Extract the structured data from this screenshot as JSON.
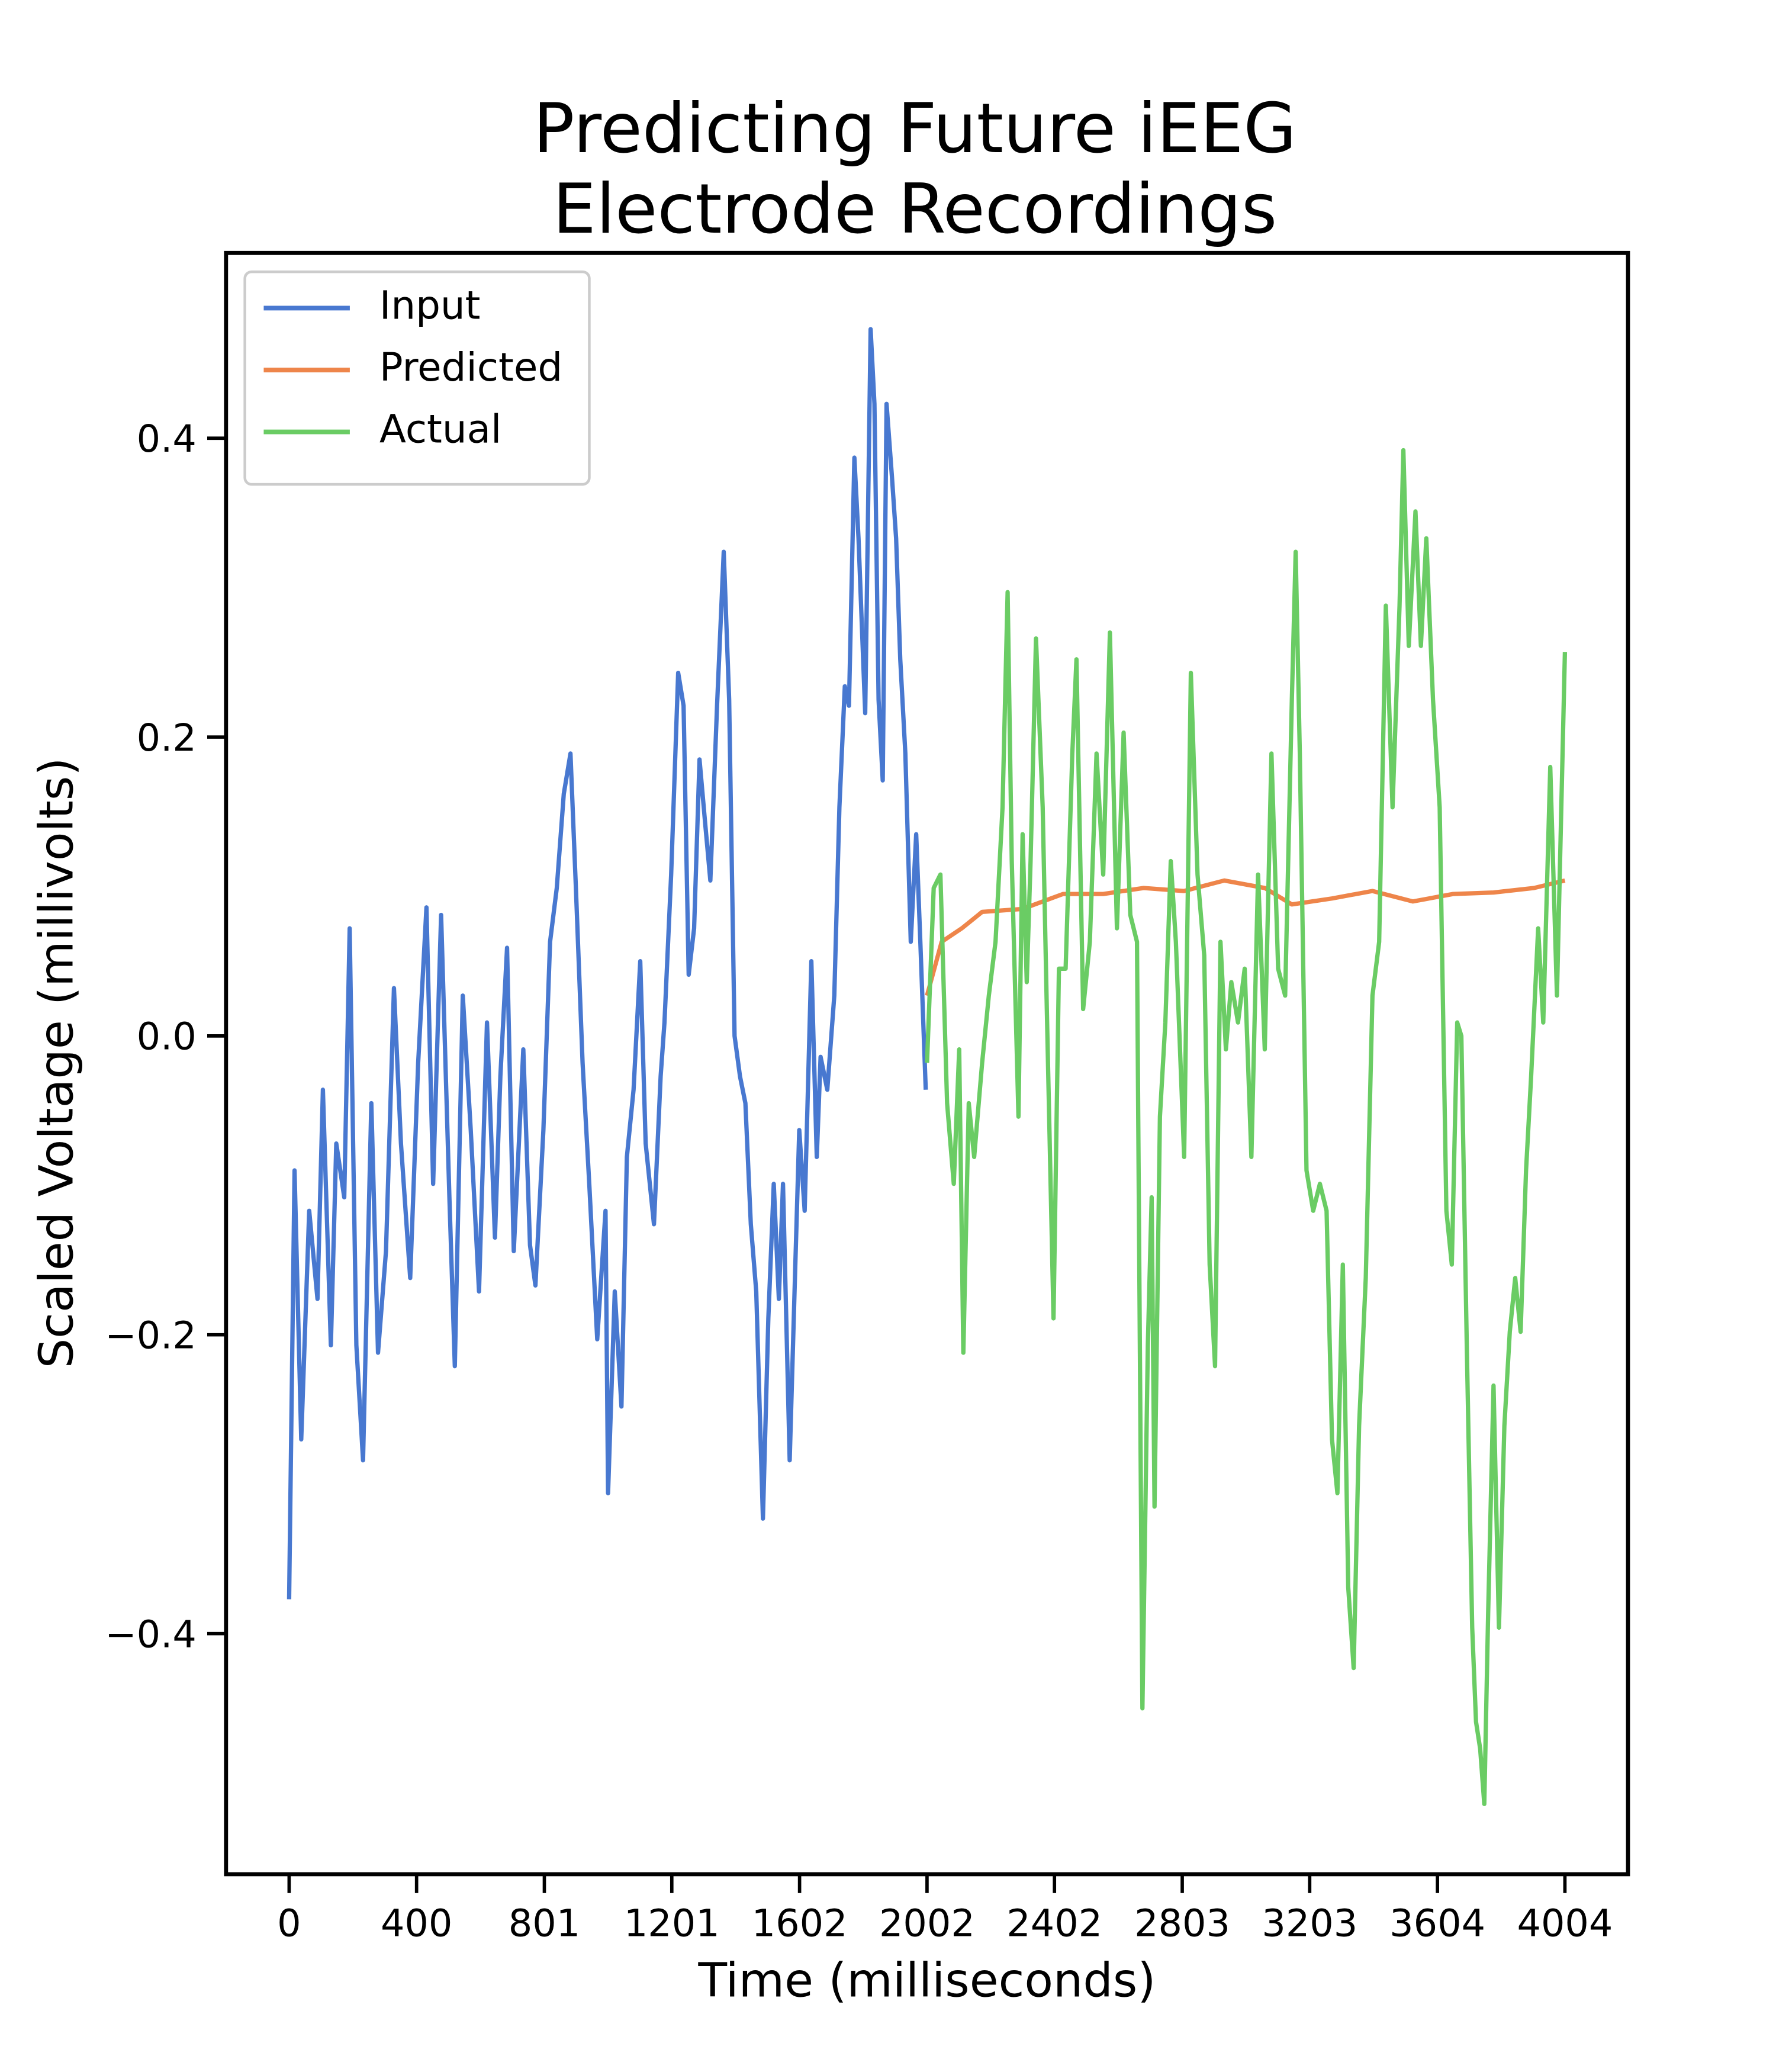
{
  "chart_data": {
    "type": "line",
    "title": "Predicting Future iEEG\nElectrode Recordings",
    "x_label": "Time (milliseconds)",
    "y_label": "Scaled Voltage (millivolts)",
    "xlim": [
      -198,
      4202
    ],
    "ylim": [
      -0.561,
      0.524
    ],
    "xticks": [
      0,
      400,
      801,
      1201,
      1602,
      2002,
      2402,
      2803,
      3203,
      3604,
      4004
    ],
    "yticks": [
      {
        "value": -0.4,
        "label": "−0.4"
      },
      {
        "value": -0.2,
        "label": "−0.2"
      },
      {
        "value": 0,
        "label": "0.0"
      },
      0.2,
      0.4
    ],
    "grid": false,
    "legend_position": "upper-left",
    "series": [
      {
        "name": "Input",
        "color": "#4878d0",
        "x": [
          0,
          17,
          38,
          63,
          89,
          106,
          131,
          148,
          173,
          190,
          211,
          232,
          258,
          279,
          304,
          329,
          351,
          380,
          405,
          431,
          452,
          477,
          503,
          520,
          545,
          570,
          596,
          621,
          646,
          663,
          684,
          705,
          735,
          756,
          773,
          798,
          819,
          840,
          862,
          883,
          900,
          921,
          942,
          967,
          993,
          1001,
          1022,
          1043,
          1060,
          1081,
          1102,
          1119,
          1145,
          1166,
          1178,
          1199,
          1221,
          1238,
          1254,
          1271,
          1288,
          1305,
          1322,
          1343,
          1364,
          1381,
          1398,
          1415,
          1432,
          1449,
          1466,
          1487,
          1504,
          1521,
          1537,
          1550,
          1571,
          1588,
          1601,
          1618,
          1639,
          1656,
          1668,
          1689,
          1711,
          1727,
          1744,
          1757,
          1774,
          1787,
          1808,
          1825,
          1837,
          1850,
          1863,
          1875,
          1892,
          1905,
          1918,
          1934,
          1951,
          1968,
          1981,
          1998
        ],
        "values": [
          -0.377,
          -0.09,
          -0.27,
          -0.117,
          -0.176,
          -0.036,
          -0.207,
          -0.072,
          -0.108,
          0.072,
          -0.207,
          -0.284,
          -0.045,
          -0.212,
          -0.144,
          0.032,
          -0.072,
          -0.162,
          -0.018,
          0.086,
          -0.099,
          0.081,
          -0.108,
          -0.221,
          0.027,
          -0.063,
          -0.171,
          0.009,
          -0.135,
          -0.027,
          0.059,
          -0.144,
          -0.009,
          -0.14,
          -0.167,
          -0.063,
          0.063,
          0.099,
          0.162,
          0.189,
          0.099,
          -0.018,
          -0.099,
          -0.203,
          -0.117,
          -0.306,
          -0.171,
          -0.248,
          -0.081,
          -0.036,
          0.05,
          -0.072,
          -0.126,
          -0.027,
          0.009,
          0.108,
          0.243,
          0.221,
          0.041,
          0.072,
          0.185,
          0.144,
          0.104,
          0.221,
          0.324,
          0.225,
          0,
          -0.027,
          -0.045,
          -0.126,
          -0.171,
          -0.323,
          -0.189,
          -0.099,
          -0.176,
          -0.099,
          -0.284,
          -0.158,
          -0.063,
          -0.117,
          0.05,
          -0.081,
          -0.014,
          -0.036,
          0.027,
          0.153,
          0.234,
          0.221,
          0.387,
          0.333,
          0.216,
          0.473,
          0.423,
          0.225,
          0.171,
          0.423,
          0.374,
          0.333,
          0.252,
          0.189,
          0.063,
          0.135,
          0.063,
          -0.036
        ]
      },
      {
        "name": "Predicted",
        "color": "#ee854a",
        "x": [
          2002,
          2048,
          2111,
          2175,
          2302,
          2429,
          2555,
          2682,
          2809,
          2935,
          3062,
          3147,
          3273,
          3400,
          3527,
          3653,
          3780,
          3907,
          4004
        ],
        "values": [
          0.027,
          0.063,
          0.072,
          0.083,
          0.085,
          0.095,
          0.095,
          0.099,
          0.097,
          0.104,
          0.099,
          0.088,
          0.092,
          0.097,
          0.09,
          0.095,
          0.096,
          0.099,
          0.104
        ]
      },
      {
        "name": "Actual",
        "color": "#6acc64",
        "x": [
          2002,
          2023,
          2044,
          2065,
          2086,
          2103,
          2116,
          2133,
          2150,
          2175,
          2196,
          2217,
          2239,
          2255,
          2268,
          2289,
          2302,
          2315,
          2327,
          2344,
          2365,
          2378,
          2399,
          2416,
          2437,
          2458,
          2471,
          2492,
          2513,
          2534,
          2555,
          2576,
          2598,
          2619,
          2640,
          2661,
          2678,
          2695,
          2707,
          2716,
          2733,
          2750,
          2767,
          2783,
          2809,
          2830,
          2851,
          2872,
          2889,
          2906,
          2923,
          2940,
          2957,
          2978,
          2999,
          3020,
          3041,
          3062,
          3083,
          3104,
          3126,
          3147,
          3159,
          3172,
          3193,
          3214,
          3235,
          3256,
          3273,
          3290,
          3307,
          3324,
          3341,
          3358,
          3379,
          3400,
          3421,
          3442,
          3463,
          3485,
          3497,
          3514,
          3535,
          3552,
          3569,
          3590,
          3611,
          3632,
          3649,
          3666,
          3679,
          3696,
          3713,
          3725,
          3738,
          3751,
          3763,
          3780,
          3797,
          3814,
          3831,
          3848,
          3865,
          3882,
          3898,
          3920,
          3936,
          3958,
          3979,
          4004
        ],
        "values": [
          -0.018,
          0.099,
          0.108,
          -0.045,
          -0.099,
          -0.009,
          -0.212,
          -0.045,
          -0.081,
          -0.018,
          0.027,
          0.063,
          0.153,
          0.297,
          0.117,
          -0.054,
          0.135,
          0.036,
          0.117,
          0.266,
          0.153,
          0.018,
          -0.189,
          0.045,
          0.045,
          0.189,
          0.252,
          0.018,
          0.063,
          0.189,
          0.108,
          0.27,
          0.072,
          0.203,
          0.081,
          0.063,
          -0.45,
          -0.207,
          -0.108,
          -0.315,
          -0.054,
          0.009,
          0.117,
          0.063,
          -0.081,
          0.243,
          0.108,
          0.054,
          -0.153,
          -0.221,
          0.063,
          -0.009,
          0.036,
          0.009,
          0.045,
          -0.081,
          0.108,
          -0.009,
          0.189,
          0.045,
          0.027,
          0.225,
          0.324,
          0.189,
          -0.09,
          -0.117,
          -0.099,
          -0.117,
          -0.27,
          -0.306,
          -0.153,
          -0.369,
          -0.423,
          -0.261,
          -0.162,
          0.027,
          0.063,
          0.288,
          0.153,
          0.288,
          0.392,
          0.261,
          0.351,
          0.261,
          0.333,
          0.225,
          0.153,
          -0.117,
          -0.153,
          0.009,
          0,
          -0.207,
          -0.396,
          -0.459,
          -0.477,
          -0.514,
          -0.387,
          -0.234,
          -0.396,
          -0.261,
          -0.198,
          -0.162,
          -0.198,
          -0.09,
          -0.027,
          0.072,
          0.009,
          0.18,
          0.027,
          0.257
        ]
      }
    ]
  }
}
